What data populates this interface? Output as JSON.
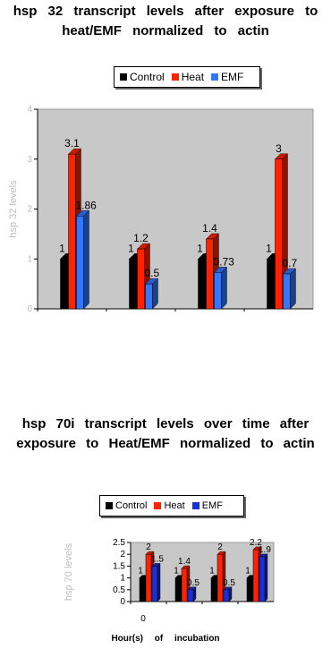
{
  "colors": {
    "control": "#000000",
    "heat": "#ff2200",
    "emf": "#3377ff",
    "emf2": "#1a2fd6",
    "plot_bg": "#c8c8c8"
  },
  "chart_data": [
    {
      "type": "bar",
      "title": "hsp 32 transcript levels after exposure to heat/EMF normalized to actin",
      "ylabel": "hsp 32 levels",
      "series": [
        {
          "name": "Control",
          "values": [
            1,
            1,
            1,
            1
          ]
        },
        {
          "name": "Heat",
          "values": [
            3.1,
            1.2,
            1.4,
            3
          ]
        },
        {
          "name": "EMF",
          "values": [
            1.86,
            0.5,
            0.73,
            0.7
          ]
        }
      ],
      "data_labels": [
        [
          "1",
          "3.1",
          "1.86"
        ],
        [
          "1",
          "1.2",
          "0.5"
        ],
        [
          "1",
          "1.4",
          "0.73"
        ],
        [
          "1",
          "3",
          "0.7"
        ]
      ],
      "yticks": [
        "0",
        "1",
        "2",
        "3",
        "4"
      ],
      "ylim": [
        0,
        4
      ],
      "legend": "top",
      "grid": false
    },
    {
      "type": "bar",
      "title": "hsp 70i transcript levels over time after exposure to Heat/EMF normalized to actin",
      "xlabel": "Hour(s) of incubation",
      "ylabel": "hsp 70 levels",
      "categories": [
        "0",
        "",
        "",
        ""
      ],
      "series": [
        {
          "name": "Control",
          "values": [
            1,
            1,
            1,
            1
          ]
        },
        {
          "name": "Heat",
          "values": [
            2,
            1.4,
            2,
            2.2
          ]
        },
        {
          "name": "EMF",
          "values": [
            1.5,
            0.5,
            0.5,
            1.9
          ]
        }
      ],
      "data_labels": [
        [
          "1",
          "2",
          "1.5"
        ],
        [
          "1",
          "1.4",
          "0.5"
        ],
        [
          "1",
          "2",
          "0.5"
        ],
        [
          "1",
          "2.2",
          "1.9"
        ]
      ],
      "yticks": [
        "0",
        "0.5",
        "1",
        "1.5",
        "2",
        "2.5"
      ],
      "ylim": [
        0,
        2.5
      ],
      "legend": "top",
      "grid": false
    }
  ]
}
